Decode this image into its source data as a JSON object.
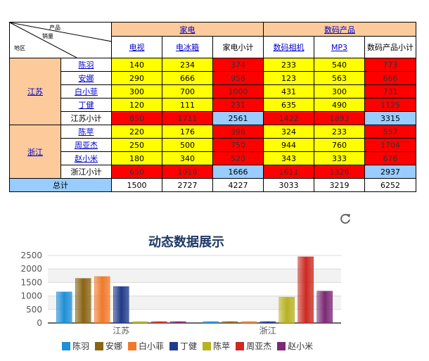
{
  "table": {
    "corner": {
      "product": "产品",
      "sales": "销量",
      "region": "地区"
    },
    "groups": [
      {
        "label": "家电",
        "span": 3
      },
      {
        "label": "数码产品",
        "span": 3
      }
    ],
    "columns": [
      {
        "label": "电视",
        "link": true
      },
      {
        "label": "电冰箱",
        "link": true
      },
      {
        "label": "家电小计",
        "link": false
      },
      {
        "label": "数码相机",
        "link": true
      },
      {
        "label": "MP3",
        "link": true
      },
      {
        "label": "数码产品小计",
        "link": false
      }
    ],
    "regions": [
      {
        "name": "江苏",
        "rows": [
          {
            "name": "陈羽",
            "values": [
              "140",
              "234",
              "374",
              "233",
              "540",
              "773"
            ]
          },
          {
            "name": "安娜",
            "values": [
              "290",
              "666",
              "956",
              "123",
              "563",
              "686"
            ]
          },
          {
            "name": "白小菲",
            "values": [
              "300",
              "700",
              "1000",
              "431",
              "300",
              "731"
            ]
          },
          {
            "name": "丁健",
            "values": [
              "120",
              "111",
              "231",
              "635",
              "490",
              "1125"
            ]
          }
        ],
        "subtotal": {
          "name": "江苏小计",
          "values": [
            "850",
            "1711",
            "2561",
            "1422",
            "1893",
            "3315"
          ]
        }
      },
      {
        "name": "浙江",
        "rows": [
          {
            "name": "陈苹",
            "values": [
              "220",
              "176",
              "396",
              "324",
              "233",
              "557"
            ]
          },
          {
            "name": "周亚杰",
            "values": [
              "250",
              "500",
              "750",
              "944",
              "760",
              "1704"
            ]
          },
          {
            "name": "赵小米",
            "values": [
              "180",
              "340",
              "520",
              "343",
              "333",
              "676"
            ]
          }
        ],
        "subtotal": {
          "name": "浙江小计",
          "values": [
            "650",
            "1016",
            "1666",
            "1611",
            "1326",
            "2937"
          ]
        }
      }
    ],
    "total": {
      "name": "总计",
      "values": [
        "1500",
        "2727",
        "4227",
        "3033",
        "3219",
        "6252"
      ]
    }
  },
  "refresh_icon": "refresh-icon",
  "colors": {
    "header": "#fdcb9b",
    "cell": "#ffff00",
    "subtotal_cell": "#ff0000",
    "subtotal_total": "#99ccff",
    "title": "#1f3864"
  },
  "chart_data": {
    "type": "bar",
    "title": "动态数据展示",
    "categories": [
      "江苏",
      "浙江"
    ],
    "ylim": [
      0,
      2500
    ],
    "yticks": [
      0,
      500,
      1000,
      1500,
      2000,
      2500
    ],
    "grid": true,
    "legend_position": "bottom",
    "series": [
      {
        "name": "陈羽",
        "values": [
          1150,
          0
        ],
        "color": "#1f8fd6"
      },
      {
        "name": "安娜",
        "values": [
          1650,
          0
        ],
        "color": "#8a6414"
      },
      {
        "name": "白小菲",
        "values": [
          1720,
          0
        ],
        "color": "#ef7a2a"
      },
      {
        "name": "丁健",
        "values": [
          1350,
          0
        ],
        "color": "#1f3a8a"
      },
      {
        "name": "陈苹",
        "values": [
          0,
          960
        ],
        "color": "#b8b222"
      },
      {
        "name": "周亚杰",
        "values": [
          0,
          2450
        ],
        "color": "#cc2a22"
      },
      {
        "name": "赵小米",
        "values": [
          0,
          1180
        ],
        "color": "#7a2a74"
      }
    ]
  }
}
